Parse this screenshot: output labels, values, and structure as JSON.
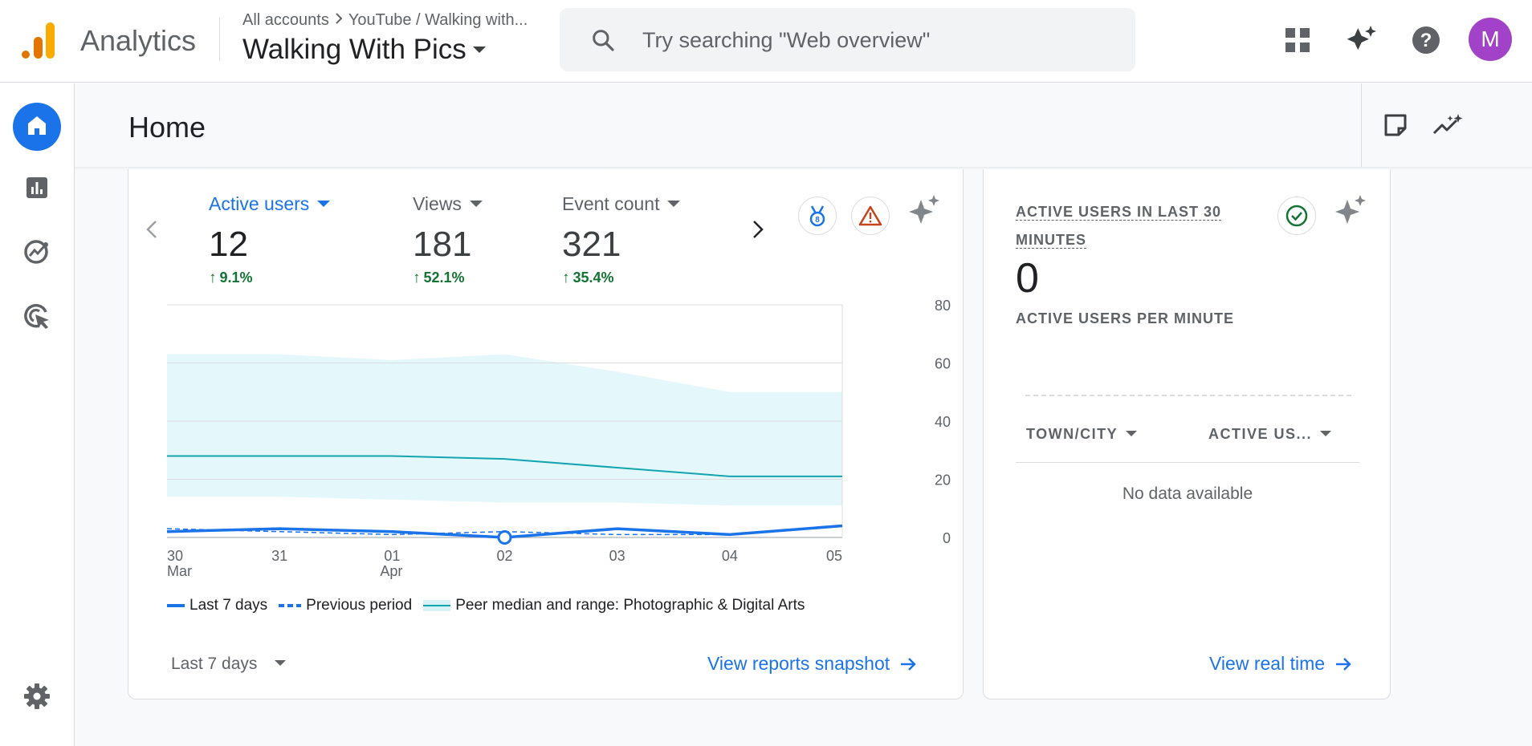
{
  "topbar": {
    "app_name": "Analytics",
    "breadcrumb": [
      "All accounts",
      "YouTube / Walking with..."
    ],
    "property_name": "Walking With Pics",
    "search_placeholder": "Try searching \"Web overview\"",
    "avatar_initial": "M",
    "avatar_color": "#a142c9"
  },
  "page": {
    "title": "Home"
  },
  "sidenav": {
    "items": [
      {
        "name": "home",
        "icon": "home-icon",
        "active": true
      },
      {
        "name": "reports",
        "icon": "bar-chart-icon",
        "active": false
      },
      {
        "name": "explore",
        "icon": "explore-icon",
        "active": false
      },
      {
        "name": "advertising",
        "icon": "target-cursor-icon",
        "active": false
      },
      {
        "name": "admin",
        "icon": "gear-icon",
        "active": false
      }
    ]
  },
  "overview": {
    "metrics": [
      {
        "label": "Active users",
        "value": "12",
        "delta": "9.1%",
        "active": true
      },
      {
        "label": "Views",
        "value": "181",
        "delta": "52.1%",
        "active": false
      },
      {
        "label": "Event count",
        "value": "321",
        "delta": "35.4%",
        "active": false
      }
    ],
    "legend": {
      "current": "Last 7 days",
      "previous": "Previous period",
      "peer": "Peer median and range: Photographic & Digital Arts"
    },
    "date_range": "Last 7 days",
    "view_link": "View reports snapshot"
  },
  "chart_data": {
    "type": "line",
    "categories": [
      "30 Mar",
      "31",
      "01 Apr",
      "02",
      "03",
      "04",
      "05"
    ],
    "x_tick_labels": [
      [
        "30",
        "Mar"
      ],
      [
        "31",
        ""
      ],
      [
        "01",
        "Apr"
      ],
      [
        "02",
        ""
      ],
      [
        "03",
        ""
      ],
      [
        "04",
        ""
      ],
      [
        "05",
        ""
      ]
    ],
    "y_ticks": [
      0,
      20,
      40,
      60,
      80
    ],
    "ylim": [
      0,
      80
    ],
    "y_axis_side": "right",
    "grid": true,
    "highlight_index": 3,
    "series": [
      {
        "name": "Last 7 days",
        "style": "solid",
        "color": "#1a73e8",
        "values": [
          2,
          3,
          2,
          0,
          3,
          1,
          4
        ]
      },
      {
        "name": "Previous period",
        "style": "dashed",
        "color": "#1a73e8",
        "values": [
          3,
          2,
          1,
          2,
          1,
          1,
          4
        ]
      },
      {
        "name": "Peer median",
        "style": "solid",
        "color": "#12a4af",
        "values": [
          28,
          28,
          28,
          27,
          24,
          21,
          21
        ]
      }
    ],
    "peer_range": {
      "name": "Peer range",
      "color": "#e4f7fa",
      "upper": [
        63,
        63,
        61,
        63,
        57,
        50,
        50
      ],
      "lower": [
        14,
        14,
        13,
        12,
        12,
        11,
        11
      ]
    }
  },
  "realtime": {
    "title_line1": "ACTIVE USERS IN LAST 30",
    "title_line2": "MINUTES",
    "value": "0",
    "subtitle": "ACTIVE USERS PER MINUTE",
    "columns": [
      "TOWN/CITY",
      "ACTIVE US..."
    ],
    "empty_text": "No data available",
    "view_link": "View real time"
  }
}
